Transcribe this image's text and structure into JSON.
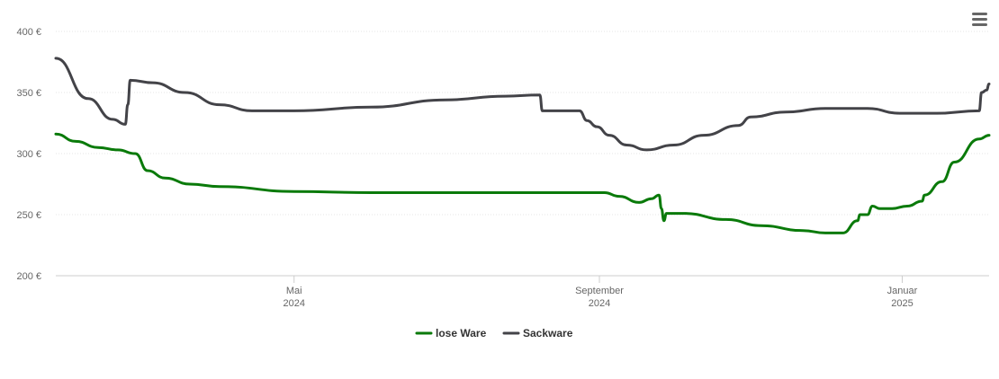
{
  "chart_data": {
    "type": "line",
    "y_axis": {
      "ticks": [
        200,
        250,
        300,
        350,
        400
      ],
      "tick_labels": [
        "200 €",
        "250 €",
        "300 €",
        "350 €",
        "400 €"
      ],
      "ylim": [
        200,
        400
      ]
    },
    "x_axis": {
      "range": [
        "2024-01-26",
        "2025-02-05"
      ],
      "ticks": [
        {
          "date": "2024-05-01",
          "line1": "Mai",
          "line2": "2024"
        },
        {
          "date": "2024-09-01",
          "line1": "September",
          "line2": "2024"
        },
        {
          "date": "2025-01-01",
          "line1": "Januar",
          "line2": "2025"
        }
      ]
    },
    "grid": true,
    "legend": {
      "position": "bottom-center"
    },
    "series": [
      {
        "name": "lose Ware",
        "color": "#0a7a0a",
        "points": [
          [
            "2024-01-26",
            316
          ],
          [
            "2024-02-03",
            310
          ],
          [
            "2024-02-12",
            305
          ],
          [
            "2024-02-20",
            303
          ],
          [
            "2024-02-27",
            300
          ],
          [
            "2024-03-03",
            286
          ],
          [
            "2024-03-10",
            280
          ],
          [
            "2024-03-20",
            275
          ],
          [
            "2024-04-01",
            273
          ],
          [
            "2024-05-01",
            269
          ],
          [
            "2024-06-01",
            268
          ],
          [
            "2024-08-01",
            268
          ],
          [
            "2024-09-03",
            268
          ],
          [
            "2024-09-09",
            265
          ],
          [
            "2024-09-17",
            260
          ],
          [
            "2024-09-22",
            263
          ],
          [
            "2024-09-25",
            266
          ],
          [
            "2024-09-26",
            255
          ],
          [
            "2024-09-27",
            245
          ],
          [
            "2024-09-28",
            251
          ],
          [
            "2024-10-05",
            251
          ],
          [
            "2024-10-22",
            246
          ],
          [
            "2024-11-05",
            241
          ],
          [
            "2024-11-22",
            237
          ],
          [
            "2024-12-01",
            235
          ],
          [
            "2024-12-08",
            235
          ],
          [
            "2024-12-14",
            245
          ],
          [
            "2024-12-15",
            250
          ],
          [
            "2024-12-18",
            250
          ],
          [
            "2024-12-20",
            257
          ],
          [
            "2024-12-23",
            255
          ],
          [
            "2024-12-28",
            255
          ],
          [
            "2025-01-03",
            257
          ],
          [
            "2025-01-09",
            261
          ],
          [
            "2025-01-10",
            266
          ],
          [
            "2025-01-17",
            277
          ],
          [
            "2025-01-22",
            293
          ],
          [
            "2025-02-01",
            312
          ],
          [
            "2025-02-05",
            315
          ]
        ]
      },
      {
        "name": "Sackware",
        "color": "#434348",
        "points": [
          [
            "2024-01-26",
            378
          ],
          [
            "2024-02-08",
            345
          ],
          [
            "2024-02-18",
            328
          ],
          [
            "2024-02-23",
            324
          ],
          [
            "2024-02-24",
            340
          ],
          [
            "2024-02-25",
            360
          ],
          [
            "2024-03-05",
            358
          ],
          [
            "2024-03-18",
            350
          ],
          [
            "2024-04-01",
            340
          ],
          [
            "2024-04-14",
            335
          ],
          [
            "2024-05-01",
            335
          ],
          [
            "2024-06-01",
            338
          ],
          [
            "2024-07-01",
            344
          ],
          [
            "2024-07-25",
            347
          ],
          [
            "2024-08-08",
            348
          ],
          [
            "2024-08-09",
            335
          ],
          [
            "2024-08-24",
            335
          ],
          [
            "2024-08-27",
            327
          ],
          [
            "2024-08-31",
            322
          ],
          [
            "2024-09-05",
            315
          ],
          [
            "2024-09-12",
            307
          ],
          [
            "2024-09-20",
            303
          ],
          [
            "2024-10-01",
            307
          ],
          [
            "2024-10-13",
            315
          ],
          [
            "2024-10-27",
            323
          ],
          [
            "2024-11-01",
            330
          ],
          [
            "2024-11-15",
            334
          ],
          [
            "2024-12-01",
            337
          ],
          [
            "2024-12-18",
            337
          ],
          [
            "2024-12-31",
            333
          ],
          [
            "2025-01-15",
            333
          ],
          [
            "2025-02-01",
            335
          ],
          [
            "2025-02-02",
            350
          ],
          [
            "2025-02-04",
            352
          ],
          [
            "2025-02-05",
            357
          ]
        ]
      }
    ]
  }
}
